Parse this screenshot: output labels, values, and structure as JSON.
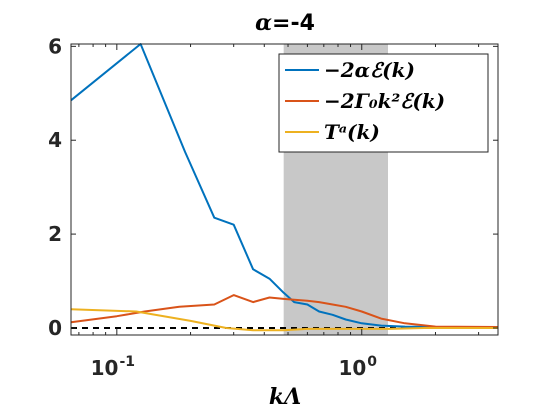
{
  "chart_data": {
    "type": "line",
    "title_prefix": "α",
    "title_suffix": "=-4",
    "xlabel": "kΛ",
    "xscale": "log",
    "xlim": [
      0.065,
      3.6
    ],
    "ylim": [
      -0.15,
      6.05
    ],
    "xticks": [
      {
        "value": 0.1,
        "label": "10",
        "exp": "-1"
      },
      {
        "value": 1,
        "label": "10",
        "exp": "0"
      }
    ],
    "yticks": [
      {
        "value": 0,
        "label": "0"
      },
      {
        "value": 2,
        "label": "2"
      },
      {
        "value": 4,
        "label": "4"
      },
      {
        "value": 6,
        "label": "6"
      }
    ],
    "shaded_band": {
      "x0": 0.48,
      "x1": 1.28,
      "color": "#c8c8c8"
    },
    "zero_line": {
      "y": 0,
      "style": "dashed",
      "color": "#000000"
    },
    "legend_position": "top-right",
    "series": [
      {
        "name": "−2αℰ(k)",
        "color": "#0072bd",
        "x": [
          0.065,
          0.125,
          0.19,
          0.25,
          0.3,
          0.36,
          0.42,
          0.48,
          0.53,
          0.6,
          0.67,
          0.76,
          0.86,
          1.0,
          1.2,
          1.5,
          2.0,
          3.6
        ],
        "y": [
          4.85,
          6.05,
          3.75,
          2.35,
          2.2,
          1.25,
          1.05,
          0.75,
          0.55,
          0.5,
          0.35,
          0.28,
          0.18,
          0.1,
          0.05,
          0.03,
          0.02,
          0.02
        ]
      },
      {
        "name": "−2Γ₀k²ℰ(k)",
        "color": "#d95319",
        "x": [
          0.065,
          0.1,
          0.13,
          0.18,
          0.25,
          0.3,
          0.36,
          0.42,
          0.48,
          0.53,
          0.6,
          0.67,
          0.76,
          0.86,
          1.0,
          1.2,
          1.5,
          2.0,
          3.6
        ],
        "y": [
          0.12,
          0.25,
          0.35,
          0.45,
          0.5,
          0.7,
          0.55,
          0.65,
          0.62,
          0.6,
          0.58,
          0.55,
          0.5,
          0.45,
          0.35,
          0.2,
          0.1,
          0.03,
          0.02
        ]
      },
      {
        "name": "Tᵃ(k)",
        "color": "#edb120",
        "x": [
          0.065,
          0.12,
          0.2,
          0.28,
          0.36,
          0.48,
          0.6,
          0.76,
          1.0,
          1.3,
          1.8,
          3.6
        ],
        "y": [
          0.4,
          0.35,
          0.15,
          0.0,
          -0.05,
          -0.05,
          -0.02,
          -0.02,
          -0.02,
          -0.02,
          0.0,
          0.0
        ]
      }
    ]
  }
}
